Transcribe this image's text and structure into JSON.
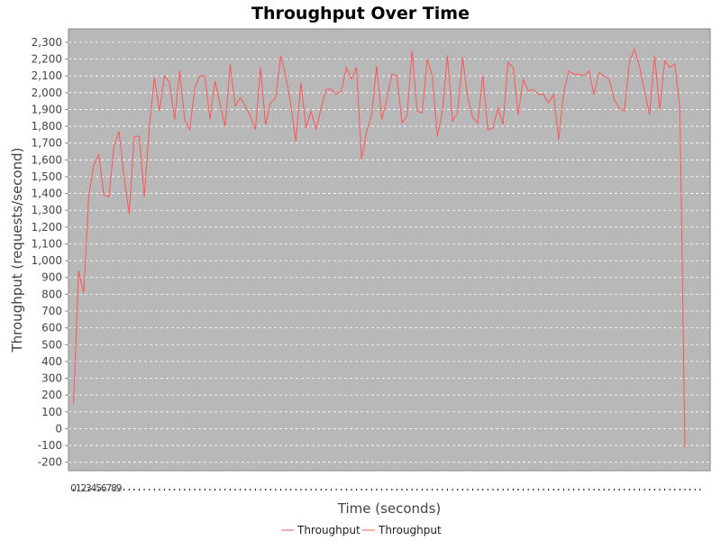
{
  "chart_data": {
    "type": "line",
    "title": "Throughput Over Time",
    "xlabel": "Time (seconds)",
    "ylabel": "Throughput (requests/second)",
    "xlim": [
      -1,
      126
    ],
    "ylim": [
      -250,
      2380
    ],
    "yticks": [
      -200,
      -100,
      0,
      100,
      200,
      300,
      400,
      500,
      600,
      700,
      800,
      900,
      1000,
      1100,
      1200,
      1300,
      1400,
      1500,
      1600,
      1700,
      1800,
      1900,
      2000,
      2100,
      2200,
      2300
    ],
    "ytick_labels": [
      "-200",
      "-100",
      "0",
      "100",
      "200",
      "300",
      "400",
      "500",
      "600",
      "700",
      "800",
      "900",
      "1,000",
      "1,100",
      "1,200",
      "1,300",
      "1,400",
      "1,500",
      "1,600",
      "1,700",
      "1,800",
      "1,900",
      "2,000",
      "2,100",
      "2,200",
      "2,300"
    ],
    "xtick_labels": [
      "0",
      "1",
      "2",
      "3",
      "4",
      "5",
      "6",
      "7",
      "8",
      "9"
    ],
    "grid": true,
    "legend_position": "bottom",
    "colors": {
      "plot_bg": "#b8b8b8",
      "series": "#ff5555",
      "grid": "#ffffff",
      "axis": "#888888"
    },
    "series": [
      {
        "name": "Throughput",
        "x": [
          0,
          1,
          2,
          3,
          4,
          5,
          6,
          7,
          8,
          9,
          10,
          11,
          12,
          13,
          14,
          15,
          16,
          17,
          18,
          19,
          20,
          21,
          22,
          23,
          24,
          25,
          26,
          27,
          28,
          29,
          30,
          31,
          32,
          33,
          34,
          35,
          36,
          37,
          38,
          39,
          40,
          41,
          42,
          43,
          44,
          45,
          46,
          47,
          48,
          49,
          50,
          51,
          52,
          53,
          54,
          55,
          56,
          57,
          58,
          59,
          60,
          61,
          62,
          63,
          64,
          65,
          66,
          67,
          68,
          69,
          70,
          71,
          72,
          73,
          74,
          75,
          76,
          77,
          78,
          79,
          80,
          81,
          82,
          83,
          84,
          85,
          86,
          87,
          88,
          89,
          90,
          91,
          92,
          93,
          94,
          95,
          96,
          97,
          98,
          99,
          100,
          101,
          102,
          103,
          104,
          105,
          106,
          107,
          108,
          109,
          110,
          111,
          112,
          113,
          114,
          115,
          116,
          117,
          118,
          119,
          120,
          121,
          122,
          123,
          124
        ],
        "values": [
          150,
          940,
          810,
          1380,
          1570,
          1630,
          1390,
          1380,
          1680,
          1770,
          1500,
          1280,
          1740,
          1740,
          1380,
          1800,
          2090,
          1890,
          2100,
          2060,
          1840,
          2130,
          1840,
          1780,
          2030,
          2100,
          2100,
          1840,
          2070,
          1930,
          1800,
          2170,
          1920,
          1970,
          1920,
          1860,
          1780,
          2150,
          1810,
          1940,
          1970,
          2220,
          2100,
          1930,
          1710,
          2060,
          1790,
          1890,
          1780,
          1910,
          2020,
          2020,
          1990,
          2010,
          2150,
          2080,
          2150,
          1600,
          1770,
          1870,
          2160,
          1840,
          1960,
          2110,
          2100,
          1820,
          1860,
          2250,
          1890,
          1880,
          2200,
          2100,
          1740,
          1890,
          2220,
          1830,
          1880,
          2210,
          1970,
          1850,
          1820,
          2100,
          1780,
          1790,
          1910,
          1810,
          2180,
          2150,
          1870,
          2080,
          2010,
          2020,
          1990,
          1990,
          1940,
          1990,
          1720,
          2000,
          2130,
          2110,
          2110,
          2100,
          2130,
          1990,
          2120,
          2100,
          2080,
          1960,
          1910,
          1890,
          2180,
          2260,
          2160,
          2010,
          1870,
          2220,
          1900,
          2190,
          2150,
          2170,
          1910,
          -110,
          null,
          null,
          null
        ]
      }
    ],
    "legend": [
      {
        "name": "Throughput"
      },
      {
        "name": "Throughput"
      }
    ]
  }
}
